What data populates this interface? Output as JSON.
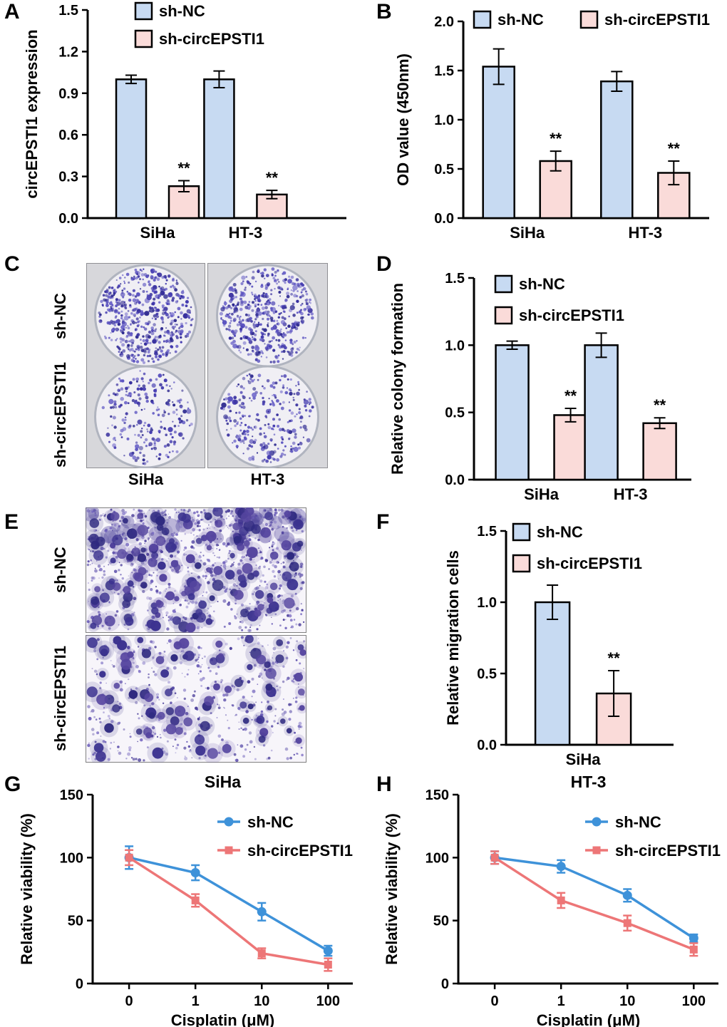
{
  "colors": {
    "bar_blue": "#c7daf2",
    "bar_pink": "#fadbd9",
    "line_blue": "#3e92d9",
    "line_red": "#ed7677",
    "colony_stain": "#443bb0"
  },
  "panels": {
    "A": "A",
    "B": "B",
    "C": "C",
    "D": "D",
    "E": "E",
    "F": "F",
    "G": "G",
    "H": "H"
  },
  "panel_c": {
    "rows": [
      "sh-NC",
      "sh-circEPSTI1"
    ],
    "cols": [
      "SiHa",
      "HT-3"
    ]
  },
  "panel_e": {
    "rows": [
      "sh-NC",
      "sh-circEPSTI1"
    ]
  },
  "chart_data": [
    {
      "id": "A",
      "type": "bar",
      "ylabel": "circEPSTI1 expression",
      "xlabel": "",
      "categories": [
        "SiHa",
        "HT-3"
      ],
      "series": [
        {
          "name": "sh-NC",
          "color": "#c7daf2",
          "values": [
            1.0,
            1.0
          ],
          "errors": [
            0.03,
            0.06
          ]
        },
        {
          "name": "sh-circEPSTI1",
          "color": "#fadbd9",
          "values": [
            0.23,
            0.17
          ],
          "errors": [
            0.04,
            0.03
          ]
        }
      ],
      "significance": [
        "**",
        "**"
      ],
      "ylim": [
        0,
        1.5
      ],
      "yticks": [
        "0.0",
        "0.3",
        "0.6",
        "0.9",
        "1.2",
        "1.5"
      ],
      "legend_position": "top-left-vertical",
      "grid": false
    },
    {
      "id": "B",
      "type": "bar",
      "ylabel": "OD value (450nm)",
      "xlabel": "",
      "categories": [
        "SiHa",
        "HT-3"
      ],
      "series": [
        {
          "name": "sh-NC",
          "color": "#c7daf2",
          "values": [
            1.54,
            1.39
          ],
          "errors": [
            0.18,
            0.1
          ]
        },
        {
          "name": "sh-circEPSTI1",
          "color": "#fadbd9",
          "values": [
            0.58,
            0.46
          ],
          "errors": [
            0.1,
            0.12
          ]
        }
      ],
      "significance": [
        "**",
        "**"
      ],
      "ylim": [
        0,
        2.0
      ],
      "yticks": [
        "0.0",
        "0.5",
        "1.0",
        "1.5",
        "2.0"
      ],
      "legend_position": "top-horizontal",
      "grid": false
    },
    {
      "id": "D",
      "type": "bar",
      "ylabel": "Relative colony formation",
      "xlabel": "",
      "categories": [
        "SiHa",
        "HT-3"
      ],
      "series": [
        {
          "name": "sh-NC",
          "color": "#c7daf2",
          "values": [
            1.0,
            1.0
          ],
          "errors": [
            0.03,
            0.09
          ]
        },
        {
          "name": "sh-circEPSTI1",
          "color": "#fadbd9",
          "values": [
            0.48,
            0.42
          ],
          "errors": [
            0.05,
            0.04
          ]
        }
      ],
      "significance": [
        "**",
        "**"
      ],
      "ylim": [
        0,
        1.5
      ],
      "yticks": [
        "0.0",
        "0.5",
        "1.0",
        "1.5"
      ],
      "legend_position": "top-left-vertical",
      "grid": false
    },
    {
      "id": "F",
      "type": "bar",
      "ylabel": "Relative migration cells",
      "xlabel": "",
      "categories": [
        "SiHa"
      ],
      "series": [
        {
          "name": "sh-NC",
          "color": "#c7daf2",
          "values": [
            1.0
          ],
          "errors": [
            0.12
          ]
        },
        {
          "name": "sh-circEPSTI1",
          "color": "#fadbd9",
          "values": [
            0.36
          ],
          "errors": [
            0.16
          ]
        }
      ],
      "significance": [
        "**"
      ],
      "ylim": [
        0,
        1.5
      ],
      "yticks": [
        "0.0",
        "0.5",
        "1.0",
        "1.5"
      ],
      "legend_position": "top-left-vertical",
      "grid": false
    },
    {
      "id": "G",
      "type": "line",
      "title": "SiHa",
      "xlabel": "Cisplatin (μM)",
      "ylabel": "Relative viability (%)",
      "categories": [
        "0",
        "1",
        "10",
        "100"
      ],
      "series": [
        {
          "name": "sh-NC",
          "color": "#3e92d9",
          "marker": "circle",
          "values": [
            100,
            88,
            57,
            26
          ],
          "errors": [
            9,
            6,
            7,
            4
          ]
        },
        {
          "name": "sh-circEPSTI1",
          "color": "#ed7677",
          "marker": "square",
          "values": [
            100,
            66,
            24,
            15
          ],
          "errors": [
            6,
            5,
            4,
            5
          ]
        }
      ],
      "ylim": [
        0,
        150
      ],
      "yticks": [
        "0",
        "50",
        "100",
        "150"
      ],
      "legend_position": "inside-right",
      "grid": false
    },
    {
      "id": "H",
      "type": "line",
      "title": "HT-3",
      "xlabel": "Cisplatin (μM)",
      "ylabel": "Relative viability (%)",
      "categories": [
        "0",
        "1",
        "10",
        "100"
      ],
      "series": [
        {
          "name": "sh-NC",
          "color": "#3e92d9",
          "marker": "circle",
          "values": [
            100,
            93,
            70,
            36
          ],
          "errors": [
            5,
            5,
            5,
            3
          ]
        },
        {
          "name": "sh-circEPSTI1",
          "color": "#ed7677",
          "marker": "square",
          "values": [
            100,
            66,
            48,
            27
          ],
          "errors": [
            5,
            6,
            6,
            5
          ]
        }
      ],
      "ylim": [
        0,
        150
      ],
      "yticks": [
        "0",
        "50",
        "100",
        "150"
      ],
      "legend_position": "inside-right",
      "grid": false
    }
  ]
}
